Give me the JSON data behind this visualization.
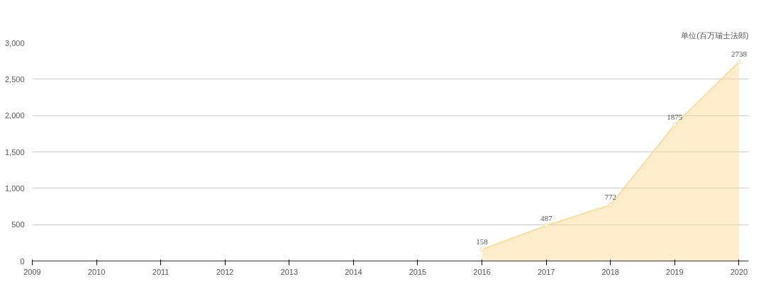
{
  "chart_data": {
    "type": "area",
    "categories": [
      "2009",
      "2010",
      "2011",
      "2012",
      "2013",
      "2014",
      "2015",
      "2016",
      "2017",
      "2018",
      "2019",
      "2020"
    ],
    "series": [
      {
        "color": "#fcd88a",
        "values": [
          null,
          null,
          null,
          null,
          null,
          null,
          null,
          158,
          487,
          772,
          1875,
          2738
        ]
      }
    ],
    "ylim": [
      0,
      3000
    ],
    "yticks": [
      0,
      {
        "value": 500,
        "label": "500"
      },
      {
        "value": 1000,
        "label": "1,000"
      },
      {
        "value": 1500,
        "label": "1,500"
      },
      {
        "value": 2000,
        "label": "2,000"
      },
      {
        "value": 2500,
        "label": "2,500"
      },
      {
        "value": 3000,
        "label": "3,000"
      }
    ],
    "grid": "y",
    "marker": "circle",
    "data_labels": true,
    "annotations": [
      "单位(百万瑞士法郎)"
    ]
  }
}
